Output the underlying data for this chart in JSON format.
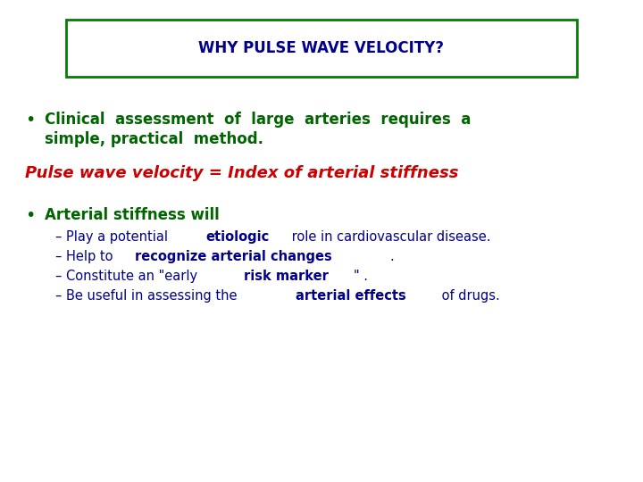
{
  "title": "WHY PULSE WAVE VELOCITY?",
  "title_color": "#00008B",
  "title_fontsize": 12,
  "box_color": "#008000",
  "background_color": "#ffffff",
  "bullet1_line1": "Clinical  assessment  of  large  arteries  requires  a",
  "bullet1_line2": "simple, practical  method.",
  "bullet1_color": "#006400",
  "bullet1_fontsize": 12,
  "italic_line": "Pulse wave velocity = Index of arterial stiffness",
  "italic_color": "#CC0000",
  "italic_fontsize": 13,
  "bullet2_text": "Arterial stiffness will",
  "bullet2_color": "#006400",
  "bullet2_fontsize": 12,
  "sub_color": "#00008B",
  "sub_fontsize": 10.5
}
